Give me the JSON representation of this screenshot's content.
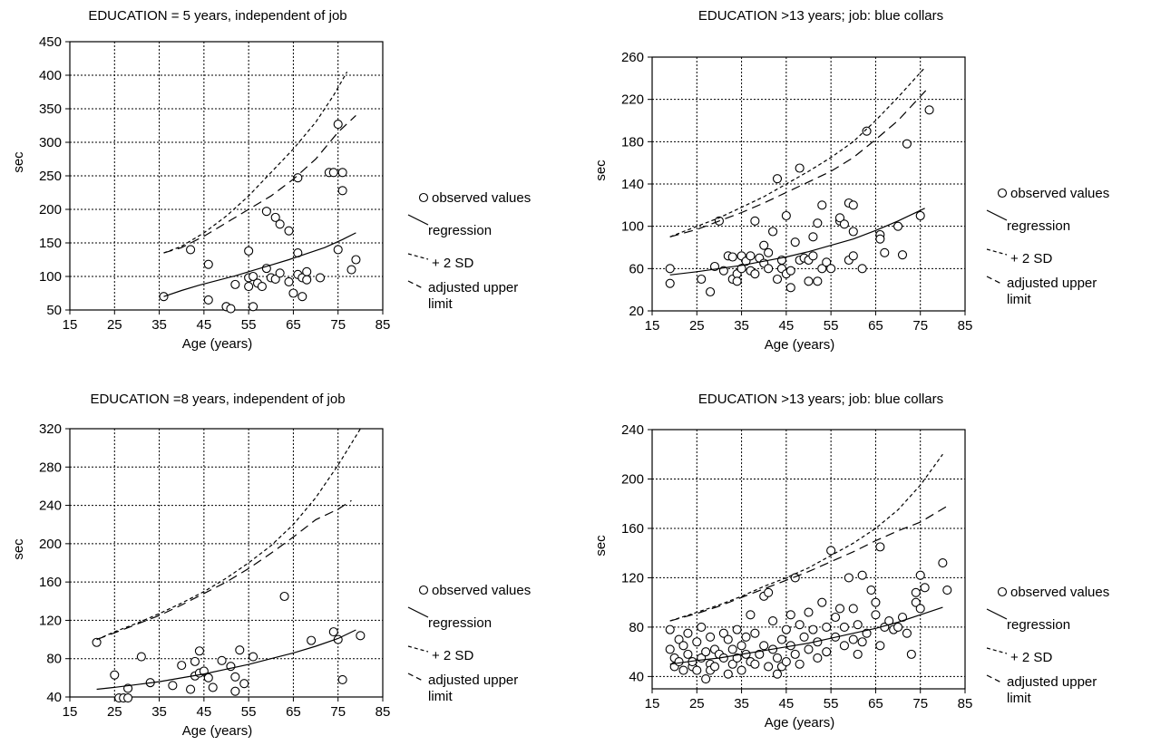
{
  "chart_data": [
    {
      "type": "scatter",
      "title": "EDUCATION = 5 years, independent of job",
      "xlabel": "Age (years)",
      "ylabel": "sec",
      "xlim": [
        15,
        85
      ],
      "ylim": [
        50,
        450
      ],
      "xticks": [
        15,
        25,
        35,
        45,
        55,
        65,
        75,
        85
      ],
      "yticks": [
        50,
        100,
        150,
        200,
        250,
        300,
        350,
        400,
        450
      ],
      "grid": true,
      "legend": [
        "observed values",
        "regression",
        "+ 2 SD",
        "adjusted upper limit"
      ],
      "series": [
        {
          "kind": "points",
          "x": [
            36,
            42,
            46,
            46,
            50,
            50,
            51,
            52,
            55,
            55,
            55,
            56,
            56,
            57,
            58,
            59,
            59,
            60,
            61,
            61,
            62,
            62,
            64,
            64,
            65,
            66,
            66,
            66,
            67,
            67,
            68,
            68,
            71,
            73,
            74,
            75,
            75,
            76,
            76,
            78,
            79
          ],
          "y": [
            70,
            140,
            65,
            118,
            55,
            55,
            52,
            88,
            138,
            98,
            85,
            55,
            100,
            90,
            85,
            197,
            112,
            98,
            188,
            96,
            178,
            105,
            168,
            92,
            75,
            247,
            135,
            103,
            70,
            98,
            107,
            95,
            98,
            255,
            255,
            140,
            327,
            255,
            228,
            110,
            125
          ]
        },
        {
          "kind": "regression",
          "x": [
            36,
            40,
            44,
            48,
            52,
            56,
            60,
            64,
            68,
            72,
            76,
            79
          ],
          "y": [
            70,
            79,
            87,
            94,
            101,
            109,
            117,
            125,
            134,
            143,
            155,
            165
          ]
        },
        {
          "kind": "plus2sd",
          "x": [
            36,
            40,
            45,
            50,
            55,
            60,
            65,
            70,
            74,
            77
          ],
          "y": [
            135,
            145,
            165,
            190,
            220,
            255,
            290,
            330,
            370,
            405
          ]
        },
        {
          "kind": "adjusted",
          "x": [
            36,
            40,
            45,
            50,
            55,
            60,
            65,
            70,
            75,
            79
          ],
          "y": [
            135,
            143,
            160,
            180,
            200,
            220,
            245,
            275,
            315,
            340
          ]
        }
      ]
    },
    {
      "type": "scatter",
      "title": "EDUCATION >13 years; job: blue collars",
      "xlabel": "Age (years)",
      "ylabel": "sec",
      "xlim": [
        15,
        85
      ],
      "ylim": [
        20,
        260
      ],
      "xticks": [
        15,
        25,
        35,
        45,
        55,
        65,
        75,
        85
      ],
      "yticks": [
        20,
        60,
        100,
        140,
        180,
        220,
        260
      ],
      "grid": true,
      "legend": [
        "observed values",
        "regression",
        "+ 2 SD",
        "adjusted upper limit"
      ],
      "series": [
        {
          "kind": "points",
          "x": [
            19,
            19,
            26,
            28,
            29,
            30,
            31,
            32,
            33,
            33,
            34,
            34,
            35,
            35,
            36,
            37,
            37,
            38,
            38,
            39,
            40,
            40,
            41,
            41,
            42,
            43,
            43,
            44,
            44,
            45,
            45,
            46,
            46,
            47,
            48,
            48,
            49,
            50,
            50,
            51,
            51,
            52,
            52,
            53,
            53,
            54,
            55,
            57,
            57,
            58,
            59,
            59,
            60,
            60,
            60,
            62,
            63,
            66,
            66,
            67,
            70,
            71,
            72,
            75,
            77
          ],
          "y": [
            60,
            46,
            50,
            38,
            62,
            105,
            58,
            72,
            50,
            71,
            55,
            48,
            60,
            72,
            67,
            58,
            72,
            55,
            105,
            70,
            65,
            82,
            75,
            60,
            95,
            50,
            145,
            68,
            60,
            110,
            55,
            42,
            58,
            85,
            68,
            155,
            70,
            48,
            68,
            72,
            90,
            103,
            48,
            60,
            120,
            66,
            60,
            105,
            108,
            102,
            68,
            122,
            72,
            120,
            95,
            60,
            190,
            92,
            88,
            75,
            100,
            73,
            178,
            110,
            210
          ]
        },
        {
          "kind": "regression",
          "x": [
            19,
            25,
            30,
            35,
            40,
            45,
            50,
            55,
            60,
            65,
            70,
            76
          ],
          "y": [
            54,
            57,
            60,
            63,
            67,
            71,
            76,
            82,
            88,
            96,
            105,
            117
          ]
        },
        {
          "kind": "plus2sd",
          "x": [
            19,
            25,
            30,
            35,
            40,
            45,
            50,
            55,
            60,
            65,
            70,
            76
          ],
          "y": [
            90,
            100,
            108,
            118,
            128,
            140,
            152,
            165,
            180,
            200,
            222,
            250
          ]
        },
        {
          "kind": "adjusted",
          "x": [
            19,
            25,
            30,
            35,
            40,
            45,
            50,
            55,
            60,
            65,
            70,
            77
          ],
          "y": [
            90,
            97,
            105,
            113,
            122,
            132,
            142,
            152,
            165,
            182,
            200,
            232
          ]
        }
      ]
    },
    {
      "type": "scatter",
      "title": "EDUCATION =8 years, independent of job",
      "xlabel": "Age (years)",
      "ylabel": "sec",
      "xlim": [
        15,
        85
      ],
      "ylim": [
        40,
        320
      ],
      "xticks": [
        15,
        25,
        35,
        45,
        55,
        65,
        75,
        85
      ],
      "yticks": [
        40,
        80,
        120,
        160,
        200,
        240,
        280,
        320
      ],
      "grid": true,
      "legend": [
        "observed values",
        "regression",
        "+ 2 SD",
        "adjusted upper limit"
      ],
      "series": [
        {
          "kind": "points",
          "x": [
            21,
            25,
            26,
            27,
            28,
            28,
            31,
            33,
            38,
            40,
            42,
            43,
            43,
            44,
            44,
            45,
            46,
            47,
            49,
            51,
            52,
            52,
            53,
            54,
            56,
            63,
            69,
            74,
            75,
            76,
            80
          ],
          "y": [
            97,
            63,
            39,
            39,
            39,
            49,
            82,
            55,
            52,
            73,
            48,
            62,
            77,
            88,
            65,
            67,
            60,
            50,
            78,
            72,
            46,
            61,
            89,
            54,
            82,
            145,
            99,
            108,
            100,
            58,
            104
          ]
        },
        {
          "kind": "regression",
          "x": [
            21,
            25,
            30,
            35,
            40,
            45,
            50,
            55,
            60,
            65,
            70,
            75,
            79
          ],
          "y": [
            48,
            50,
            53,
            56,
            60,
            64,
            69,
            74,
            80,
            86,
            93,
            101,
            110
          ]
        },
        {
          "kind": "plus2sd",
          "x": [
            21,
            25,
            30,
            35,
            40,
            45,
            50,
            55,
            60,
            65,
            70,
            75,
            80
          ],
          "y": [
            100,
            108,
            117,
            127,
            138,
            150,
            164,
            180,
            198,
            220,
            248,
            282,
            320
          ]
        },
        {
          "kind": "adjusted",
          "x": [
            21,
            25,
            30,
            35,
            40,
            45,
            50,
            55,
            60,
            65,
            70,
            75,
            78
          ],
          "y": [
            100,
            107,
            116,
            125,
            136,
            148,
            160,
            174,
            190,
            207,
            225,
            236,
            245
          ]
        }
      ]
    },
    {
      "type": "scatter",
      "title": "EDUCATION >13 years; job: blue collars",
      "xlabel": "Age (years)",
      "ylabel": "sec",
      "xlim": [
        15,
        85
      ],
      "ylim": [
        30,
        240
      ],
      "xticks": [
        15,
        25,
        35,
        45,
        55,
        65,
        75,
        85
      ],
      "yticks": [
        40,
        80,
        120,
        160,
        200,
        240
      ],
      "grid": true,
      "legend": [
        "observed values",
        "regression",
        "+ 2 SD",
        "adjusted upper limit"
      ],
      "series": [
        {
          "kind": "points",
          "x": [
            19,
            19,
            20,
            20,
            21,
            21,
            22,
            22,
            23,
            23,
            24,
            24,
            25,
            25,
            26,
            26,
            27,
            27,
            28,
            28,
            28,
            29,
            29,
            30,
            31,
            31,
            32,
            32,
            33,
            33,
            34,
            34,
            35,
            35,
            36,
            36,
            37,
            37,
            38,
            38,
            39,
            40,
            40,
            41,
            41,
            42,
            42,
            43,
            43,
            44,
            44,
            45,
            45,
            46,
            46,
            47,
            47,
            48,
            48,
            49,
            50,
            50,
            51,
            52,
            52,
            53,
            54,
            54,
            55,
            56,
            56,
            57,
            58,
            58,
            59,
            60,
            60,
            61,
            61,
            62,
            62,
            63,
            64,
            65,
            65,
            66,
            66,
            67,
            68,
            69,
            70,
            71,
            72,
            73,
            74,
            74,
            75,
            75,
            76,
            80,
            81
          ],
          "y": [
            78,
            62,
            55,
            48,
            70,
            52,
            45,
            65,
            58,
            75,
            48,
            52,
            68,
            45,
            80,
            55,
            60,
            38,
            72,
            50,
            45,
            62,
            48,
            58,
            75,
            55,
            70,
            42,
            62,
            50,
            78,
            55,
            65,
            45,
            72,
            58,
            90,
            52,
            75,
            50,
            58,
            65,
            105,
            48,
            108,
            85,
            62,
            55,
            42,
            70,
            48,
            78,
            52,
            90,
            65,
            120,
            58,
            82,
            50,
            72,
            92,
            62,
            78,
            68,
            55,
            100,
            80,
            60,
            142,
            72,
            88,
            95,
            65,
            80,
            120,
            70,
            95,
            58,
            82,
            122,
            68,
            75,
            110,
            90,
            100,
            65,
            145,
            80,
            85,
            78,
            80,
            88,
            75,
            58,
            100,
            108,
            95,
            122,
            112,
            132,
            110
          ]
        },
        {
          "kind": "regression",
          "x": [
            19,
            25,
            30,
            35,
            40,
            45,
            50,
            55,
            60,
            65,
            70,
            75,
            80
          ],
          "y": [
            50,
            53,
            55,
            58,
            61,
            64,
            67,
            71,
            75,
            79,
            84,
            90,
            96
          ]
        },
        {
          "kind": "plus2sd",
          "x": [
            19,
            25,
            30,
            35,
            40,
            45,
            50,
            55,
            60,
            65,
            70,
            75,
            80
          ],
          "y": [
            85,
            92,
            98,
            105,
            113,
            120,
            128,
            138,
            148,
            160,
            175,
            195,
            220
          ]
        },
        {
          "kind": "adjusted",
          "x": [
            19,
            25,
            30,
            35,
            40,
            45,
            50,
            55,
            60,
            65,
            70,
            75,
            81
          ],
          "y": [
            85,
            91,
            97,
            104,
            111,
            118,
            125,
            133,
            141,
            150,
            158,
            165,
            178
          ]
        }
      ]
    }
  ]
}
